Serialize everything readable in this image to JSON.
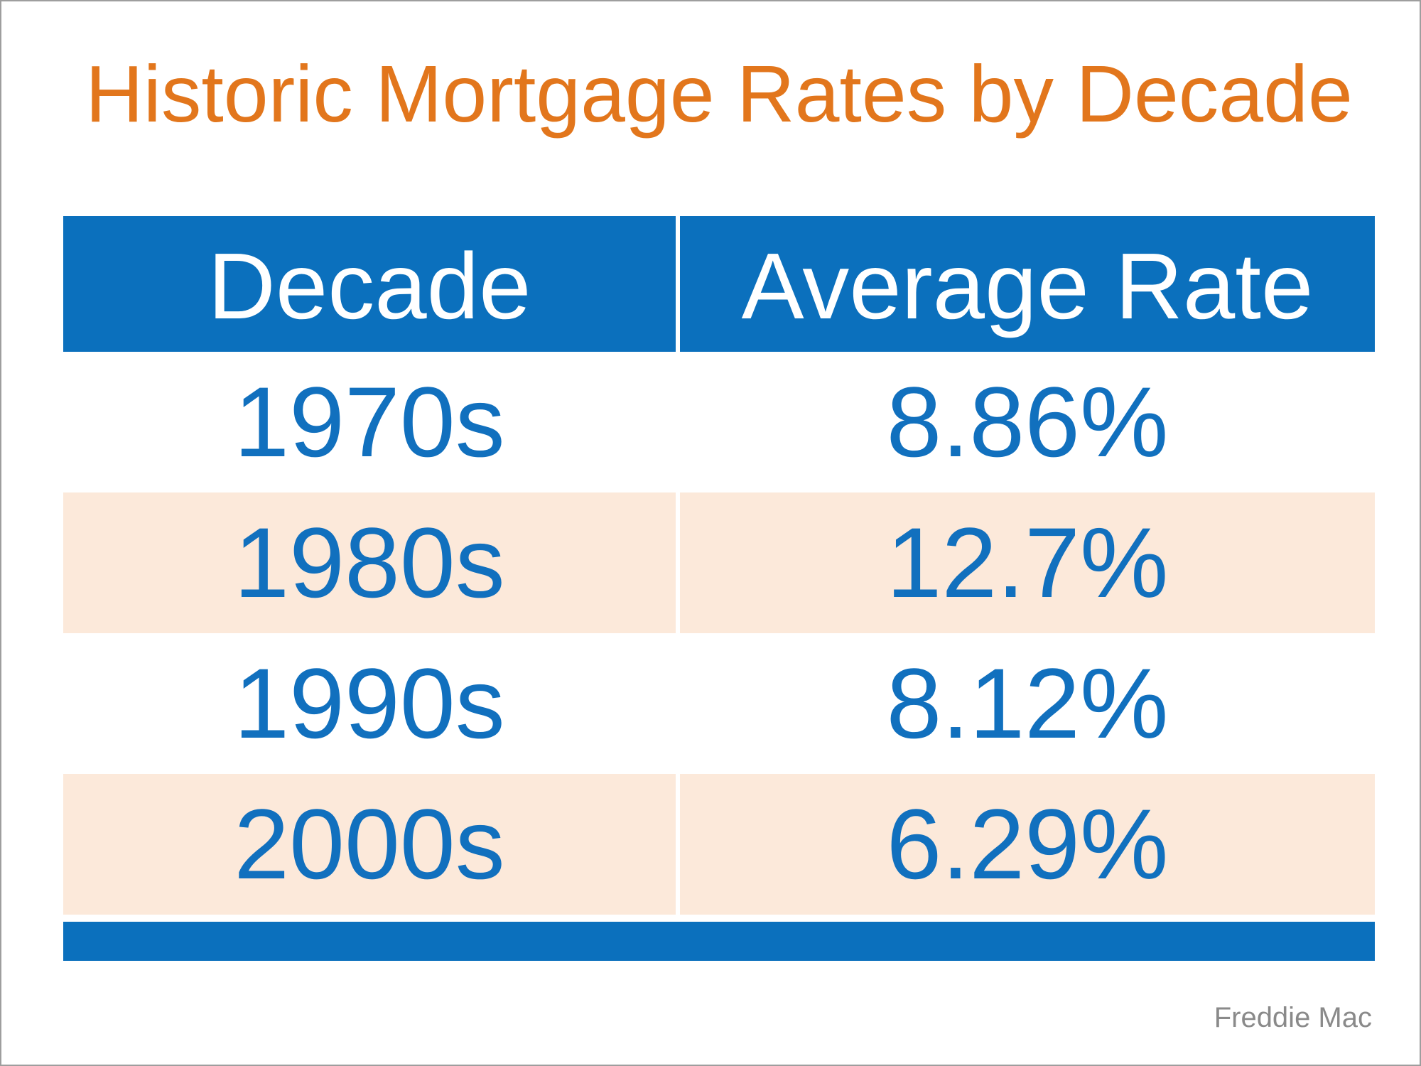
{
  "page": {
    "title": "Historic Mortgage Rates by Decade",
    "source": "Freddie Mac"
  },
  "chart_data": {
    "type": "table",
    "title": "Historic Mortgage Rates by Decade",
    "columns": [
      "Decade",
      "Average Rate"
    ],
    "rows": [
      {
        "decade": "1970s",
        "average_rate": "8.86%"
      },
      {
        "decade": "1980s",
        "average_rate": "12.7%"
      },
      {
        "decade": "1990s",
        "average_rate": "8.12%"
      },
      {
        "decade": "2000s",
        "average_rate": "6.29%"
      }
    ],
    "source": "Freddie Mac",
    "layout": {
      "striped_rows": [
        "1980s",
        "2000s"
      ],
      "header_position": "top"
    }
  },
  "colors": {
    "header_blue": "#0B70BD",
    "row_text_blue": "#1170BE",
    "stripe_peach": "#FCE9DA",
    "title_orange": "#E2761C",
    "source_gray": "#8A8A8A"
  }
}
